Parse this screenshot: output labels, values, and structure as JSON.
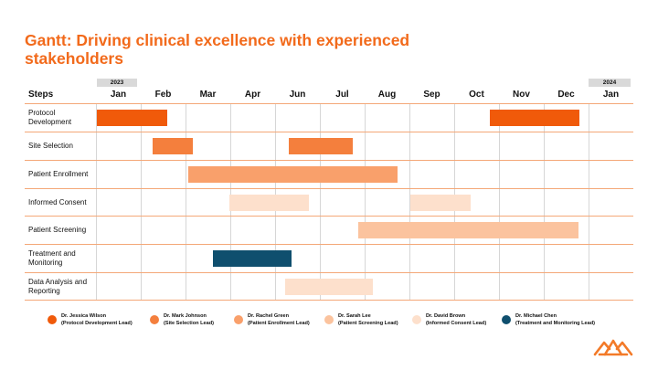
{
  "title": "Gantt: Driving clinical excellence with experienced stakeholders",
  "years": {
    "start": "2023",
    "end": "2024"
  },
  "header": {
    "steps_label": "Steps"
  },
  "months": [
    "Jan",
    "Feb",
    "Mar",
    "Apr",
    "Jun",
    "Jul",
    "Aug",
    "Sep",
    "Oct",
    "Nov",
    "Dec",
    "Jan"
  ],
  "steps": [
    "Protocol Development",
    "Site Selection",
    "Patient Enrollment",
    "Informed Consent",
    "Patient Screening",
    "Treatment and Monitoring",
    "Data Analysis and Reporting"
  ],
  "colors": {
    "accent": "#f26a1b",
    "jessica": "#f05a0a",
    "mark": "#f47f3d",
    "rachel": "#f9a06b",
    "sarah": "#fbc39e",
    "david": "#fde0cc",
    "michael": "#0f4f6e"
  },
  "legend": [
    {
      "name": "Dr. Jessica Wilson",
      "role": "(Protocol Development Lead)",
      "color": "#f05a0a"
    },
    {
      "name": "Dr. Mark Johnson",
      "role": "(Site Selection Lead)",
      "color": "#f47f3d"
    },
    {
      "name": "Dr. Rachel Green",
      "role": "(Patient Enrollment Lead)",
      "color": "#f9a06b"
    },
    {
      "name": "Dr. Sarah Lee",
      "role": "(Patient Screening Lead)",
      "color": "#fbc39e"
    },
    {
      "name": "Dr. David Brown",
      "role": "(Informed Consent Lead)",
      "color": "#fde0cc"
    },
    {
      "name": "Dr. Michael Chen",
      "role": "(Treatment and Monitoring Lead)",
      "color": "#0f4f6e"
    }
  ],
  "tasks": [
    {
      "step": "Protocol Development",
      "start": 0.03,
      "end": 1.6,
      "color": "#f05a0a"
    },
    {
      "step": "Protocol Development",
      "start": 8.8,
      "end": 10.8,
      "color": "#f05a0a"
    },
    {
      "step": "Site Selection",
      "start": 1.27,
      "end": 2.17,
      "color": "#f47f3d"
    },
    {
      "step": "Site Selection",
      "start": 4.3,
      "end": 5.73,
      "color": "#f47f3d"
    },
    {
      "step": "Patient Enrollment",
      "start": 2.06,
      "end": 6.74,
      "color": "#f9a06b"
    },
    {
      "step": "Informed Consent",
      "start": 2.98,
      "end": 4.75,
      "color": "#fde0cc"
    },
    {
      "step": "Informed Consent",
      "start": 7.02,
      "end": 8.37,
      "color": "#fde0cc"
    },
    {
      "step": "Patient Screening",
      "start": 5.86,
      "end": 10.77,
      "color": "#fbc39e"
    },
    {
      "step": "Treatment and Monitoring",
      "start": 2.62,
      "end": 4.37,
      "color": "#0f4f6e"
    },
    {
      "step": "Data Analysis and Reporting",
      "start": 4.23,
      "end": 6.18,
      "color": "#fde0cc"
    }
  ]
}
